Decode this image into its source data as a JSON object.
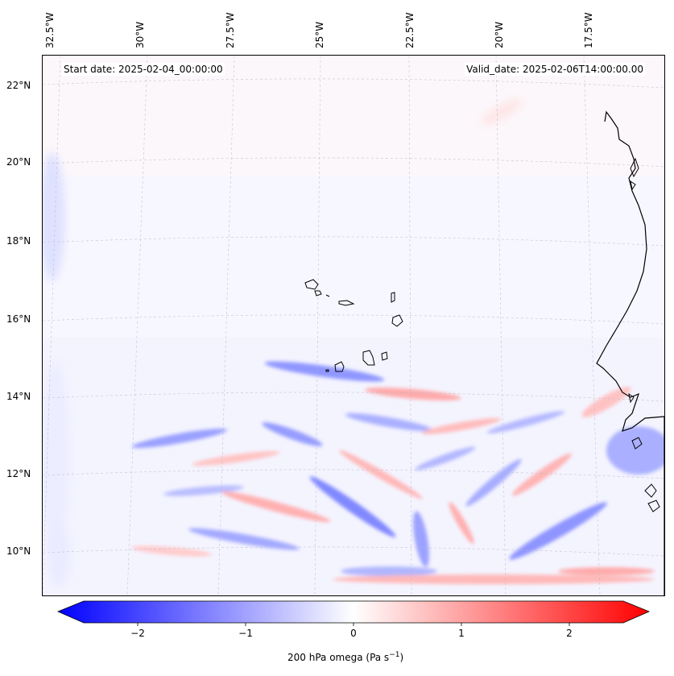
{
  "header": {
    "start_date": "Start date: 2025-02-04_00:00:00",
    "valid_date": "Valid_date: 2025-02-06T14:00:00.00"
  },
  "axes": {
    "lon_labels": [
      "32.5°W",
      "30°W",
      "27.5°W",
      "25°W",
      "22.5°W",
      "20°W",
      "17.5°W"
    ],
    "lat_labels": [
      "22°N",
      "20°N",
      "18°N",
      "16°N",
      "14°N",
      "12°N",
      "10°N"
    ]
  },
  "colorbar": {
    "ticks": [
      "−2",
      "−1",
      "0",
      "1",
      "2"
    ],
    "range": [
      -2.75,
      2.75
    ],
    "label": "200 hPa omega (Pa s",
    "label_sup": "−1",
    "label_end": ")",
    "colormap": "bwr"
  },
  "colors": {
    "negative": "#0000ff",
    "positive": "#ff0000",
    "neutral": "#ffffff",
    "coastline": "#000000"
  }
}
